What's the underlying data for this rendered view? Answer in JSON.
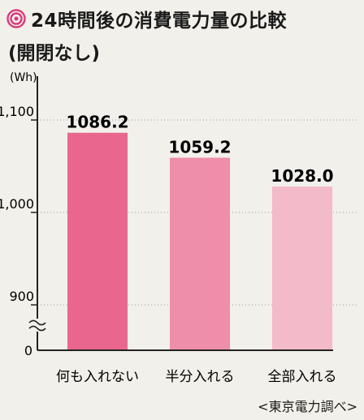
{
  "title": "24時間後の消費電力量の比較",
  "subtitle": "(開閉なし)",
  "source": "<東京電力調べ>",
  "colors": {
    "bar1": "#e9678f",
    "bar2": "#ee8eaa",
    "bar3": "#f3bac9",
    "accent": "#d93a7a"
  },
  "chart_data": {
    "type": "bar",
    "title": "24時間後の消費電力量の比較",
    "subtitle": "(開閉なし)",
    "unit_label": "(Wh)",
    "categories": [
      "何も入れない",
      "半分入れる",
      "全部入れる"
    ],
    "values": [
      1086.2,
      1059.2,
      1028.0
    ],
    "value_labels": [
      "1086.2",
      "1059.2",
      "1028.0"
    ],
    "y_ticks": [
      {
        "value": 1100,
        "label": "1,100"
      },
      {
        "value": 1000,
        "label": "1,000"
      },
      {
        "value": 900,
        "label": "900"
      }
    ],
    "y_zero_label": "0",
    "ylim": [
      860,
      1125
    ],
    "axis_break": true,
    "grid": "dotted"
  }
}
